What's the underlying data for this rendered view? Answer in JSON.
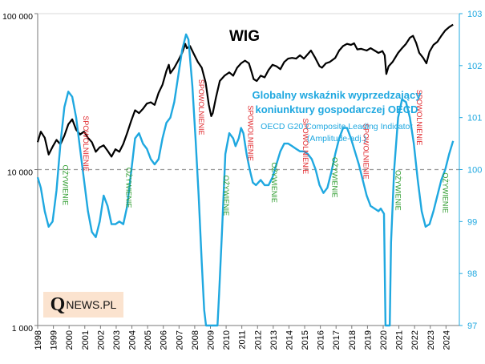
{
  "chart_data": {
    "type": "line",
    "title": "WIG",
    "subtitle": [
      "Globalny wskaźnik wyprzedzający",
      "koniunktury gospodarczej OECD"
    ],
    "note": [
      "OECD G20 Composite Leading Indicator",
      "(Amplitude-adj.)"
    ],
    "x_ticks": [
      "1998",
      "1999",
      "2000",
      "2001",
      "2002",
      "2003",
      "2004",
      "2005",
      "2006",
      "2007",
      "2008",
      "2009",
      "2010",
      "2011",
      "2012",
      "2013",
      "2014",
      "2015",
      "2016",
      "2017",
      "2018",
      "2019",
      "2020",
      "2021",
      "2022",
      "2023",
      "2024"
    ],
    "xlim": [
      1998,
      2024.85
    ],
    "left_axis": {
      "scale": "log",
      "range": [
        1000,
        100000
      ],
      "tick_labels": [
        "1 000",
        "10 000",
        "100 000"
      ],
      "tick_values": [
        1000,
        10000,
        100000
      ]
    },
    "right_axis": {
      "scale": "linear",
      "range": [
        97,
        103
      ],
      "tick_labels": [
        "97",
        "98",
        "99",
        "100",
        "101",
        "102",
        "103"
      ],
      "tick_values": [
        97,
        98,
        99,
        100,
        101,
        102,
        103
      ]
    },
    "reference_line": {
      "axis": "right",
      "value": 100,
      "style": "dashed"
    },
    "series": [
      {
        "name": "WIG",
        "axis": "left",
        "color": "#000000",
        "points": [
          [
            1998.0,
            15000
          ],
          [
            1998.2,
            17500
          ],
          [
            1998.45,
            16000
          ],
          [
            1998.7,
            12500
          ],
          [
            1998.95,
            14000
          ],
          [
            1999.2,
            15500
          ],
          [
            1999.45,
            14500
          ],
          [
            1999.7,
            16500
          ],
          [
            1999.95,
            19500
          ],
          [
            2000.2,
            21000
          ],
          [
            2000.45,
            18000
          ],
          [
            2000.7,
            16800
          ],
          [
            2000.95,
            17500
          ],
          [
            2001.2,
            16000
          ],
          [
            2001.45,
            15000
          ],
          [
            2001.7,
            13000
          ],
          [
            2001.95,
            13900
          ],
          [
            2002.2,
            14300
          ],
          [
            2002.45,
            13200
          ],
          [
            2002.7,
            12100
          ],
          [
            2002.95,
            13500
          ],
          [
            2003.2,
            13000
          ],
          [
            2003.45,
            14600
          ],
          [
            2003.7,
            17200
          ],
          [
            2003.95,
            20500
          ],
          [
            2004.2,
            24000
          ],
          [
            2004.45,
            23000
          ],
          [
            2004.7,
            24500
          ],
          [
            2004.95,
            26500
          ],
          [
            2005.2,
            27000
          ],
          [
            2005.45,
            26000
          ],
          [
            2005.7,
            31000
          ],
          [
            2005.95,
            35000
          ],
          [
            2006.2,
            43000
          ],
          [
            2006.35,
            47000
          ],
          [
            2006.45,
            41500
          ],
          [
            2006.7,
            45000
          ],
          [
            2006.95,
            50000
          ],
          [
            2007.2,
            56000
          ],
          [
            2007.4,
            64000
          ],
          [
            2007.5,
            60000
          ],
          [
            2007.7,
            62000
          ],
          [
            2007.95,
            55000
          ],
          [
            2008.2,
            49000
          ],
          [
            2008.45,
            45000
          ],
          [
            2008.7,
            36000
          ],
          [
            2008.9,
            26000
          ],
          [
            2009.05,
            22000
          ],
          [
            2009.15,
            23000
          ],
          [
            2009.35,
            29000
          ],
          [
            2009.6,
            37000
          ],
          [
            2009.9,
            40000
          ],
          [
            2010.2,
            42000
          ],
          [
            2010.45,
            40000
          ],
          [
            2010.7,
            45000
          ],
          [
            2010.95,
            48000
          ],
          [
            2011.2,
            50000
          ],
          [
            2011.45,
            48000
          ],
          [
            2011.6,
            43000
          ],
          [
            2011.75,
            38000
          ],
          [
            2011.95,
            37000
          ],
          [
            2012.2,
            40000
          ],
          [
            2012.45,
            39000
          ],
          [
            2012.7,
            43500
          ],
          [
            2012.95,
            47000
          ],
          [
            2013.2,
            46000
          ],
          [
            2013.45,
            44000
          ],
          [
            2013.7,
            49000
          ],
          [
            2013.95,
            51500
          ],
          [
            2014.2,
            52000
          ],
          [
            2014.45,
            51500
          ],
          [
            2014.7,
            54000
          ],
          [
            2014.95,
            51500
          ],
          [
            2015.2,
            55000
          ],
          [
            2015.4,
            58000
          ],
          [
            2015.65,
            52500
          ],
          [
            2015.95,
            46000
          ],
          [
            2016.1,
            45000
          ],
          [
            2016.35,
            48000
          ],
          [
            2016.6,
            49000
          ],
          [
            2016.95,
            52000
          ],
          [
            2017.2,
            58000
          ],
          [
            2017.45,
            62000
          ],
          [
            2017.7,
            64000
          ],
          [
            2017.95,
            63000
          ],
          [
            2018.15,
            64500
          ],
          [
            2018.35,
            59000
          ],
          [
            2018.6,
            59500
          ],
          [
            2018.95,
            58000
          ],
          [
            2019.2,
            60000
          ],
          [
            2019.45,
            58000
          ],
          [
            2019.7,
            56000
          ],
          [
            2019.95,
            57500
          ],
          [
            2020.1,
            54000
          ],
          [
            2020.2,
            41000
          ],
          [
            2020.35,
            46000
          ],
          [
            2020.6,
            49000
          ],
          [
            2020.95,
            56000
          ],
          [
            2021.2,
            60000
          ],
          [
            2021.45,
            64000
          ],
          [
            2021.7,
            70000
          ],
          [
            2021.9,
            72000
          ],
          [
            2022.1,
            65000
          ],
          [
            2022.3,
            56000
          ],
          [
            2022.55,
            52000
          ],
          [
            2022.75,
            48000
          ],
          [
            2022.95,
            57000
          ],
          [
            2023.2,
            63000
          ],
          [
            2023.45,
            66000
          ],
          [
            2023.7,
            72000
          ],
          [
            2023.95,
            78000
          ],
          [
            2024.2,
            82000
          ],
          [
            2024.45,
            85000
          ]
        ]
      },
      {
        "name": "OECD G20 Composite Leading Indicator",
        "axis": "right",
        "color": "#1fa8e0",
        "points": [
          [
            1998.0,
            99.85
          ],
          [
            1998.2,
            99.65
          ],
          [
            1998.45,
            99.2
          ],
          [
            1998.7,
            98.9
          ],
          [
            1998.95,
            99.0
          ],
          [
            1999.2,
            99.6
          ],
          [
            1999.45,
            100.5
          ],
          [
            1999.7,
            101.2
          ],
          [
            1999.95,
            101.5
          ],
          [
            2000.2,
            101.4
          ],
          [
            2000.45,
            101.0
          ],
          [
            2000.7,
            100.4
          ],
          [
            2000.95,
            99.8
          ],
          [
            2001.2,
            99.2
          ],
          [
            2001.45,
            98.8
          ],
          [
            2001.7,
            98.7
          ],
          [
            2001.95,
            99.0
          ],
          [
            2002.2,
            99.5
          ],
          [
            2002.45,
            99.3
          ],
          [
            2002.7,
            98.95
          ],
          [
            2002.95,
            98.95
          ],
          [
            2003.2,
            99.0
          ],
          [
            2003.45,
            98.95
          ],
          [
            2003.7,
            99.3
          ],
          [
            2003.95,
            99.95
          ],
          [
            2004.2,
            100.6
          ],
          [
            2004.45,
            100.7
          ],
          [
            2004.7,
            100.5
          ],
          [
            2004.95,
            100.4
          ],
          [
            2005.2,
            100.2
          ],
          [
            2005.45,
            100.1
          ],
          [
            2005.7,
            100.2
          ],
          [
            2005.95,
            100.6
          ],
          [
            2006.2,
            100.9
          ],
          [
            2006.45,
            101.0
          ],
          [
            2006.7,
            101.3
          ],
          [
            2006.95,
            101.8
          ],
          [
            2007.2,
            102.3
          ],
          [
            2007.45,
            102.6
          ],
          [
            2007.6,
            102.5
          ],
          [
            2007.85,
            101.6
          ],
          [
            2008.05,
            100.6
          ],
          [
            2008.25,
            99.5
          ],
          [
            2008.45,
            98.2
          ],
          [
            2008.6,
            97.3
          ],
          [
            2008.72,
            96.9
          ],
          [
            2009.45,
            96.9
          ],
          [
            2009.55,
            97.6
          ],
          [
            2009.75,
            98.9
          ],
          [
            2009.95,
            100.3
          ],
          [
            2010.2,
            100.7
          ],
          [
            2010.45,
            100.6
          ],
          [
            2010.6,
            100.45
          ],
          [
            2010.8,
            100.6
          ],
          [
            2010.95,
            100.8
          ],
          [
            2011.1,
            100.7
          ],
          [
            2011.3,
            100.3
          ],
          [
            2011.5,
            100.0
          ],
          [
            2011.7,
            99.75
          ],
          [
            2011.9,
            99.7
          ],
          [
            2012.2,
            99.8
          ],
          [
            2012.45,
            99.7
          ],
          [
            2012.7,
            99.7
          ],
          [
            2012.95,
            99.85
          ],
          [
            2013.2,
            100.1
          ],
          [
            2013.45,
            100.35
          ],
          [
            2013.7,
            100.5
          ],
          [
            2013.95,
            100.5
          ],
          [
            2014.2,
            100.45
          ],
          [
            2014.45,
            100.4
          ],
          [
            2014.7,
            100.35
          ],
          [
            2014.95,
            100.35
          ],
          [
            2015.2,
            100.3
          ],
          [
            2015.45,
            100.2
          ],
          [
            2015.7,
            100.0
          ],
          [
            2015.95,
            99.7
          ],
          [
            2016.2,
            99.55
          ],
          [
            2016.45,
            99.65
          ],
          [
            2016.7,
            99.95
          ],
          [
            2016.95,
            100.3
          ],
          [
            2017.2,
            100.6
          ],
          [
            2017.45,
            100.8
          ],
          [
            2017.7,
            100.8
          ],
          [
            2017.95,
            100.6
          ],
          [
            2018.2,
            100.35
          ],
          [
            2018.45,
            100.1
          ],
          [
            2018.7,
            99.8
          ],
          [
            2018.95,
            99.5
          ],
          [
            2019.2,
            99.3
          ],
          [
            2019.45,
            99.25
          ],
          [
            2019.7,
            99.2
          ],
          [
            2019.85,
            99.25
          ],
          [
            2020.05,
            99.15
          ],
          [
            2020.15,
            97.0
          ],
          [
            2020.42,
            97.0
          ],
          [
            2020.5,
            98.6
          ],
          [
            2020.7,
            100.0
          ],
          [
            2020.95,
            101.0
          ],
          [
            2021.2,
            101.35
          ],
          [
            2021.45,
            101.3
          ],
          [
            2021.7,
            101.0
          ],
          [
            2021.95,
            100.5
          ],
          [
            2022.2,
            99.8
          ],
          [
            2022.45,
            99.2
          ],
          [
            2022.7,
            98.9
          ],
          [
            2022.95,
            98.95
          ],
          [
            2023.2,
            99.2
          ],
          [
            2023.45,
            99.5
          ],
          [
            2023.7,
            99.8
          ],
          [
            2023.95,
            100.0
          ],
          [
            2024.2,
            100.3
          ],
          [
            2024.45,
            100.55
          ]
        ]
      }
    ],
    "annotations": [
      {
        "text": "OŻYWIENIE",
        "x": 1999.6,
        "y": 99.7,
        "color": "green"
      },
      {
        "text": "SPOWOLNIENIE",
        "x": 2000.9,
        "y": 100.5,
        "color": "red"
      },
      {
        "text": "OŻYWIENIE",
        "x": 2003.65,
        "y": 99.65,
        "color": "green"
      },
      {
        "text": "SPOWOLNIENIE",
        "x": 2008.25,
        "y": 101.2,
        "color": "red"
      },
      {
        "text": "OŻYWIENIE",
        "x": 2009.85,
        "y": 99.5,
        "color": "green"
      },
      {
        "text": "SPOWOLNIENIE",
        "x": 2011.4,
        "y": 100.7,
        "color": "red"
      },
      {
        "text": "OŻYWIENIE",
        "x": 2012.9,
        "y": 99.75,
        "color": "green"
      },
      {
        "text": "SPOWOLNIENIE",
        "x": 2014.9,
        "y": 100.45,
        "color": "red"
      },
      {
        "text": "OŻYWIENIE",
        "x": 2016.75,
        "y": 99.85,
        "color": "green"
      },
      {
        "text": "SPOWOLNIENIE",
        "x": 2018.75,
        "y": 100.35,
        "color": "red"
      },
      {
        "text": "OŻYWIENIE",
        "x": 2020.8,
        "y": 99.6,
        "color": "green"
      },
      {
        "text": "SPOWOLNIENIE",
        "x": 2022.15,
        "y": 101.0,
        "color": "red"
      },
      {
        "text": "OŻYWIENIE",
        "x": 2023.8,
        "y": 99.55,
        "color": "green"
      }
    ]
  },
  "logo": {
    "letter": "Q",
    "rest": "NEWS.PL"
  },
  "colors": {
    "accent": "#1fa8e0",
    "green": "#2a9a2a",
    "red": "#e0262b",
    "ref": "#999999",
    "logo_bg": "#fbe3cf"
  }
}
